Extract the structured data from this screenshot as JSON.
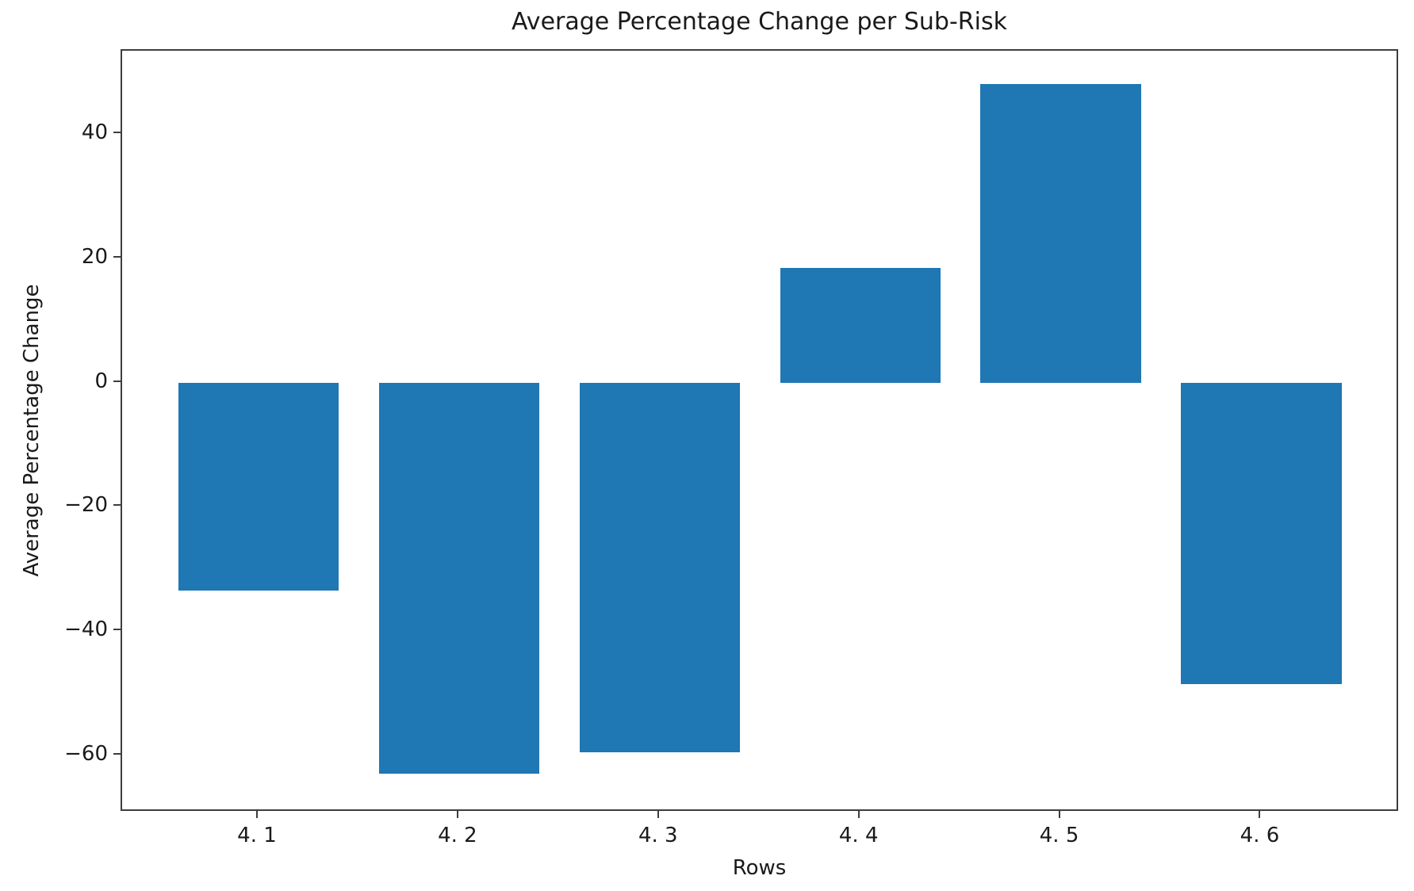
{
  "chart_data": {
    "type": "bar",
    "title": "Average Percentage Change per Sub-Risk",
    "xlabel": "Rows",
    "ylabel": "Average Percentage Change",
    "categories": [
      "4. 1",
      "4. 2",
      "4. 3",
      "4. 4",
      "4. 5",
      "4. 6"
    ],
    "values": [
      -33.5,
      -63,
      -59.5,
      18.5,
      48,
      -48.5
    ],
    "bar_color": "#1f77b4",
    "bar_width": 0.8,
    "xlim": [
      -0.68,
      5.69
    ],
    "ylim": [
      -69.2,
      53.4
    ],
    "yticks": [
      40,
      20,
      0,
      -20,
      -40,
      -60
    ],
    "grid": false,
    "legend_position": "none",
    "axis_color": "#3d3d3d",
    "text_color": "#1a1a1a",
    "background_color": "#ffffff"
  }
}
